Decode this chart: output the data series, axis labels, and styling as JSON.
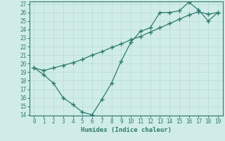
{
  "title": "",
  "xlabel": "Humidex (Indice chaleur)",
  "ylabel": "",
  "x_data": [
    0,
    1,
    2,
    3,
    4,
    5,
    6,
    7,
    8,
    9,
    10,
    11,
    12,
    13,
    14,
    15,
    16,
    17,
    18,
    19
  ],
  "line1_y": [
    19.5,
    18.7,
    17.7,
    16.0,
    15.2,
    14.3,
    14.0,
    15.8,
    17.7,
    20.3,
    22.5,
    23.8,
    24.2,
    26.0,
    26.0,
    26.2,
    27.2,
    26.3,
    25.0,
    26.0
  ],
  "line2_y": [
    19.5,
    19.2,
    19.5,
    19.8,
    20.1,
    20.5,
    21.0,
    21.4,
    21.9,
    22.3,
    22.8,
    23.2,
    23.7,
    24.2,
    24.7,
    25.2,
    25.7,
    26.1,
    25.8,
    26.0
  ],
  "line_color": "#2e7b6e",
  "bg_color": "#d0ece8",
  "grid_color": "#b8dbd5",
  "ylim": [
    14,
    27
  ],
  "xlim": [
    -0.5,
    19.5
  ],
  "yticks": [
    14,
    15,
    16,
    17,
    18,
    19,
    20,
    21,
    22,
    23,
    24,
    25,
    26,
    27
  ],
  "xticks": [
    0,
    1,
    2,
    3,
    4,
    5,
    6,
    7,
    8,
    9,
    10,
    11,
    12,
    13,
    14,
    15,
    16,
    17,
    18,
    19
  ],
  "marker": "+",
  "linewidth": 0.9,
  "markersize": 4,
  "tick_fontsize": 5.5,
  "xlabel_fontsize": 6.5
}
